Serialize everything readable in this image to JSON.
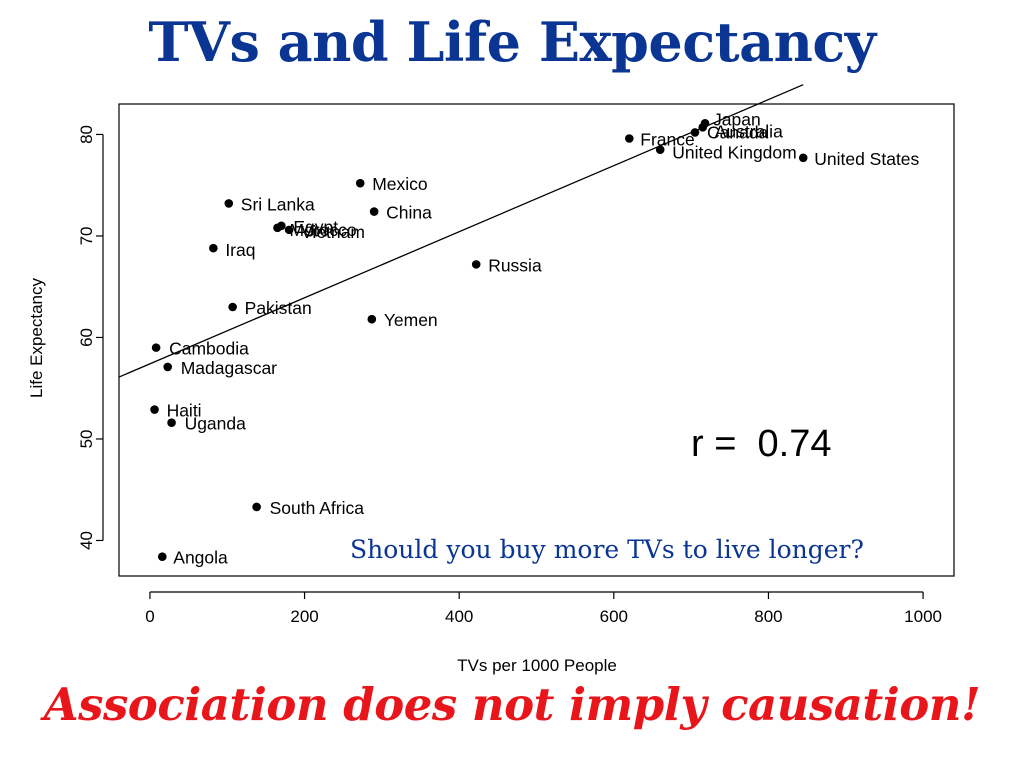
{
  "slide": {
    "title": "TVs and Life Expectancy",
    "question": "Should you buy more TVs to live longer?",
    "footer": "Association does not imply causation!",
    "title_color": "#0a3593",
    "question_color": "#0a3593",
    "footer_color": "#e8151b"
  },
  "chart_data": {
    "type": "scatter",
    "xlabel": "TVs per 1000 People",
    "ylabel": "Life Expectancy",
    "xlim": [
      -40,
      1040
    ],
    "ylim": [
      36.5,
      83
    ],
    "x_ticks": [
      0,
      200,
      400,
      600,
      800,
      1000
    ],
    "y_ticks": [
      40,
      50,
      60,
      70,
      80
    ],
    "annotation": "r =  0.74",
    "regression_line": {
      "x": [
        -40,
        845
      ],
      "y": [
        56.1,
        84.9
      ]
    },
    "grid": false,
    "legend": "none",
    "points": [
      {
        "x": 718,
        "y": 81.1,
        "label": "Japan",
        "label_dx": 8,
        "label_dy": 2
      },
      {
        "x": 715,
        "y": 80.7,
        "label": "Australia",
        "label_dx": 12,
        "label_dy": 10
      },
      {
        "x": 705,
        "y": 80.2,
        "label": "Canada",
        "label_dx": 12,
        "label_dy": 6
      },
      {
        "x": 620,
        "y": 79.6,
        "label": "France",
        "label_dx": 11,
        "label_dy": 7
      },
      {
        "x": 660,
        "y": 78.5,
        "label": "United Kingdom",
        "label_dx": 12,
        "label_dy": 9
      },
      {
        "x": 845,
        "y": 77.7,
        "label": "United States",
        "label_dx": 11,
        "label_dy": 7
      },
      {
        "x": 272,
        "y": 75.2,
        "label": "Mexico",
        "label_dx": 12,
        "label_dy": 7
      },
      {
        "x": 102,
        "y": 73.2,
        "label": "Sri Lanka",
        "label_dx": 12,
        "label_dy": 7
      },
      {
        "x": 290,
        "y": 72.4,
        "label": "China",
        "label_dx": 12,
        "label_dy": 7
      },
      {
        "x": 170,
        "y": 71.0,
        "label": "Egypt",
        "label_dx": 12,
        "label_dy": 7
      },
      {
        "x": 180,
        "y": 70.6,
        "label": "Vietnam",
        "label_dx": 12,
        "label_dy": 8
      },
      {
        "x": 165,
        "y": 70.8,
        "label": "Morocco",
        "label_dx": 12,
        "label_dy": 8
      },
      {
        "x": 82,
        "y": 68.8,
        "label": "Iraq",
        "label_dx": 12,
        "label_dy": 8
      },
      {
        "x": 422,
        "y": 67.2,
        "label": "Russia",
        "label_dx": 12,
        "label_dy": 7
      },
      {
        "x": 107,
        "y": 63.0,
        "label": "Pakistan",
        "label_dx": 12,
        "label_dy": 7
      },
      {
        "x": 287,
        "y": 61.8,
        "label": "Yemen",
        "label_dx": 12,
        "label_dy": 7
      },
      {
        "x": 8,
        "y": 59.0,
        "label": "Cambodia",
        "label_dx": 13,
        "label_dy": 7
      },
      {
        "x": 23,
        "y": 57.1,
        "label": "Madagascar",
        "label_dx": 13,
        "label_dy": 7
      },
      {
        "x": 6,
        "y": 52.9,
        "label": "Haiti",
        "label_dx": 12,
        "label_dy": 7
      },
      {
        "x": 28,
        "y": 51.6,
        "label": "Uganda",
        "label_dx": 13,
        "label_dy": 7
      },
      {
        "x": 138,
        "y": 43.3,
        "label": "South Africa",
        "label_dx": 13,
        "label_dy": 7
      },
      {
        "x": 16,
        "y": 38.4,
        "label": "Angola",
        "label_dx": 11,
        "label_dy": 7
      }
    ]
  }
}
